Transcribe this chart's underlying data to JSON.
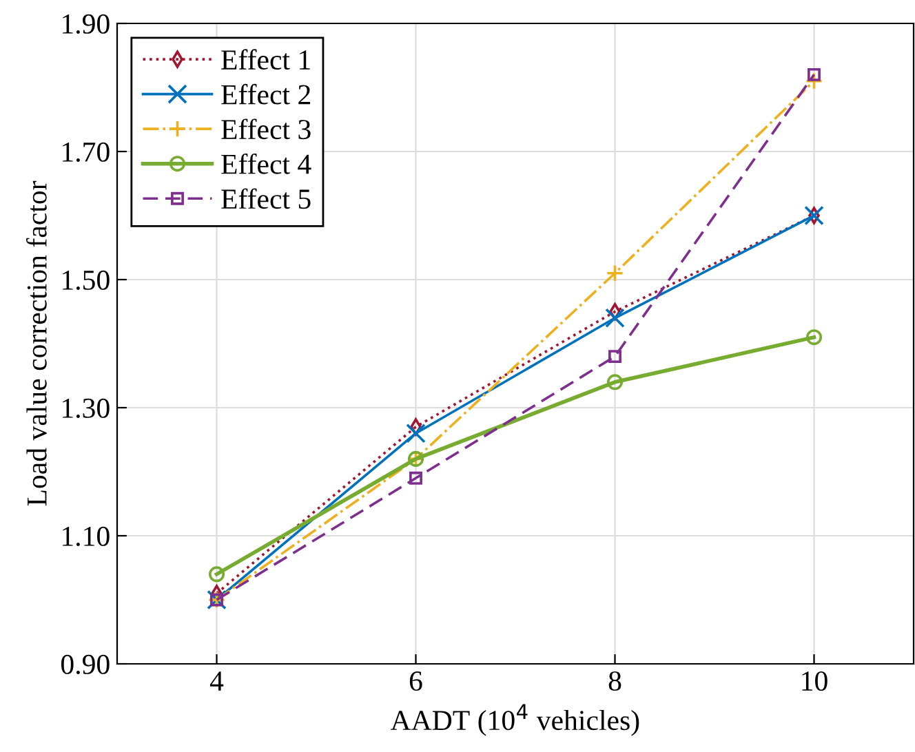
{
  "chart_data": {
    "type": "line",
    "xlabel": "AADT (10$^{4}$ vehicles)",
    "ylabel": "Load value correction factor",
    "x": [
      4,
      6,
      8,
      10
    ],
    "xlim": [
      3,
      11
    ],
    "xticks": [
      4,
      6,
      8,
      10
    ],
    "ylim": [
      0.9,
      1.9
    ],
    "yticks": [
      {
        "value": 0.9,
        "label": "0.90"
      },
      {
        "value": 1.1,
        "label": "1.10"
      },
      {
        "value": 1.3,
        "label": "1.30"
      },
      {
        "value": 1.5,
        "label": "1.50"
      },
      {
        "value": 1.7,
        "label": "1.70"
      },
      {
        "value": 1.9,
        "label": "1.90"
      }
    ],
    "grid": true,
    "legend": "top left",
    "series": [
      {
        "name": "Effect 1",
        "color": "#a2142f",
        "values": [
          1.01,
          1.27,
          1.45,
          1.6
        ],
        "marker": "diamond",
        "line_style": "dotted"
      },
      {
        "name": "Effect 2",
        "color": "#0072bd",
        "values": [
          1.0,
          1.26,
          1.44,
          1.6
        ],
        "marker": "cross",
        "line_style": "solid"
      },
      {
        "name": "Effect 3",
        "color": "#edb120",
        "values": [
          1.0,
          1.22,
          1.51,
          1.81
        ],
        "marker": "plus",
        "line_style": "dashdot"
      },
      {
        "name": "Effect 4",
        "color": "#77ac30",
        "values": [
          1.04,
          1.22,
          1.34,
          1.41
        ],
        "marker": "circle",
        "line_style": "solid"
      },
      {
        "name": "Effect 5",
        "color": "#7e2f8e",
        "values": [
          1.0,
          1.19,
          1.38,
          1.82
        ],
        "marker": "square",
        "line_style": "dashed"
      }
    ]
  }
}
